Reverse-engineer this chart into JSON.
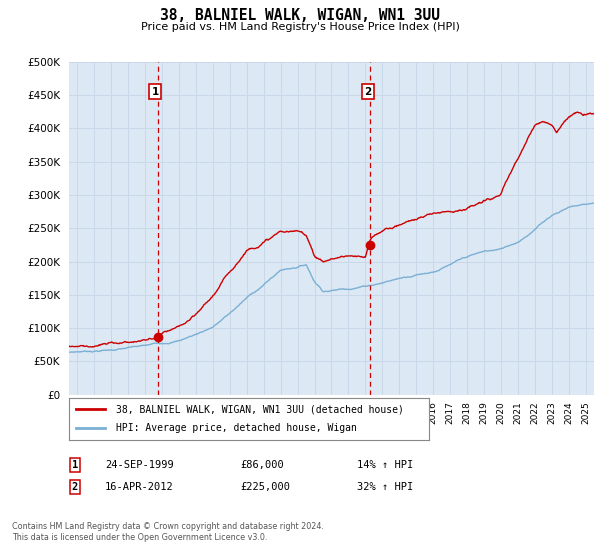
{
  "title": "38, BALNIEL WALK, WIGAN, WN1 3UU",
  "subtitle": "Price paid vs. HM Land Registry's House Price Index (HPI)",
  "plot_bg_color": "#dce9f5",
  "outer_bg_color": "#ffffff",
  "grid_color": "#c8d8e8",
  "red_line_color": "#cc0000",
  "blue_line_color": "#7bafd4",
  "sale1_year": 1999.73,
  "sale1_price": 86000,
  "sale2_year": 2012.29,
  "sale2_price": 225000,
  "marker_color": "#cc0000",
  "vline_color": "#cc0000",
  "legend_label1": "38, BALNIEL WALK, WIGAN, WN1 3UU (detached house)",
  "legend_label2": "HPI: Average price, detached house, Wigan",
  "annotation1_label": "1",
  "annotation2_label": "2",
  "annotation1_date": "24-SEP-1999",
  "annotation1_price": "£86,000",
  "annotation1_hpi": "14% ↑ HPI",
  "annotation2_date": "16-APR-2012",
  "annotation2_price": "£225,000",
  "annotation2_hpi": "32% ↑ HPI",
  "footer1": "Contains HM Land Registry data © Crown copyright and database right 2024.",
  "footer2": "This data is licensed under the Open Government Licence v3.0.",
  "ylim": [
    0,
    500000
  ],
  "yticks": [
    0,
    50000,
    100000,
    150000,
    200000,
    250000,
    300000,
    350000,
    400000,
    450000,
    500000
  ],
  "xmin": 1994.5,
  "xmax": 2025.5,
  "hpi_anchors_x": [
    1994.5,
    1995,
    1996,
    1997,
    1998,
    1999,
    2000,
    2001,
    2002,
    2003,
    2004,
    2005,
    2006,
    2007,
    2008,
    2008.5,
    2009,
    2009.5,
    2010,
    2011,
    2012,
    2013,
    2014,
    2015,
    2016,
    2017,
    2018,
    2019,
    2020,
    2021,
    2022,
    2023,
    2024,
    2025,
    2025.5
  ],
  "hpi_anchors_y": [
    64000,
    65000,
    67000,
    69000,
    72000,
    74000,
    78000,
    83000,
    93000,
    105000,
    125000,
    148000,
    168000,
    190000,
    196000,
    200000,
    175000,
    162000,
    163000,
    167000,
    172000,
    178000,
    185000,
    192000,
    198000,
    208000,
    218000,
    225000,
    228000,
    240000,
    260000,
    282000,
    295000,
    300000,
    302000
  ],
  "red_anchors_x": [
    1994.5,
    1995,
    1996,
    1997,
    1998,
    1999,
    1999.73,
    2000,
    2001,
    2002,
    2003,
    2004,
    2005,
    2006,
    2007,
    2008,
    2008.5,
    2009,
    2009.5,
    2010,
    2011,
    2012,
    2012.29,
    2013,
    2014,
    2015,
    2016,
    2017,
    2018,
    2019,
    2020,
    2021,
    2022,
    2022.5,
    2023,
    2023.3,
    2024,
    2024.5,
    2025,
    2025.5
  ],
  "red_anchors_y": [
    73000,
    74000,
    76000,
    78000,
    81000,
    84000,
    86000,
    92000,
    98000,
    112000,
    140000,
    175000,
    210000,
    225000,
    240000,
    238000,
    234000,
    205000,
    195000,
    200000,
    205000,
    198000,
    225000,
    238000,
    248000,
    258000,
    265000,
    272000,
    278000,
    285000,
    295000,
    345000,
    395000,
    405000,
    400000,
    390000,
    415000,
    420000,
    415000,
    418000
  ]
}
